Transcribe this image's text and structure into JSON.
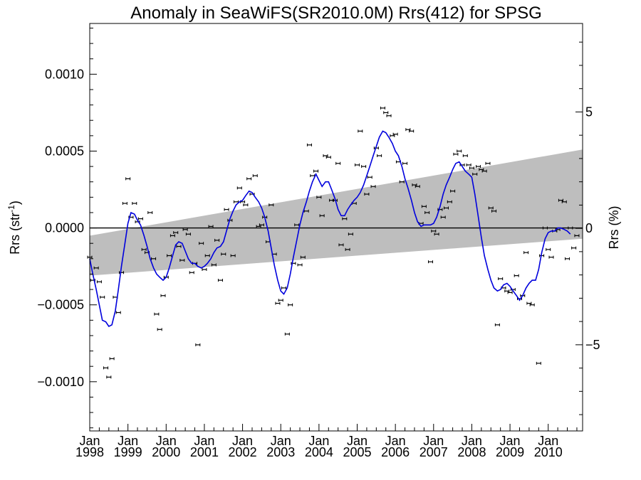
{
  "chart_data": {
    "type": "scatter",
    "title": "Anomaly in SeaWiFS(SR2010.0M) Rrs(412) for SPSG",
    "ylabel_left": "Rrs (str",
    "ylabel_left_sup": "-1",
    "ylabel_left_close": ")",
    "ylabel_right": "Rrs (%)",
    "xlim": [
      1998.0,
      2010.9
    ],
    "ylim": [
      -0.00132,
      0.00133
    ],
    "ylim_right": [
      -8.7,
      8.8
    ],
    "grid": false,
    "y_ticks": [
      {
        "value": 0.001,
        "label": "0.0010"
      },
      {
        "value": 0.0005,
        "label": "0.0005"
      },
      {
        "value": 0.0,
        "label": "0.0000"
      },
      {
        "value": -0.0005,
        "label": "−0.0005"
      },
      {
        "value": -0.001,
        "label": "−0.0010"
      }
    ],
    "y_right_ticks": [
      {
        "value": 5,
        "label": "5"
      },
      {
        "value": 0,
        "label": "0"
      },
      {
        "value": -5,
        "label": "−5"
      }
    ],
    "x_ticks": [
      {
        "value": 1998.0,
        "month": "Jan",
        "year": "1998"
      },
      {
        "value": 1999.0,
        "month": "Jan",
        "year": "1999"
      },
      {
        "value": 2000.0,
        "month": "Jan",
        "year": "2000"
      },
      {
        "value": 2001.0,
        "month": "Jan",
        "year": "2001"
      },
      {
        "value": 2002.0,
        "month": "Jan",
        "year": "2002"
      },
      {
        "value": 2003.0,
        "month": "Jan",
        "year": "2003"
      },
      {
        "value": 2004.0,
        "month": "Jan",
        "year": "2004"
      },
      {
        "value": 2005.0,
        "month": "Jan",
        "year": "2005"
      },
      {
        "value": 2006.0,
        "month": "Jan",
        "year": "2006"
      },
      {
        "value": 2007.0,
        "month": "Jan",
        "year": "2007"
      },
      {
        "value": 2008.0,
        "month": "Jan",
        "year": "2008"
      },
      {
        "value": 2009.0,
        "month": "Jan",
        "year": "2009"
      },
      {
        "value": 2010.0,
        "month": "Jan",
        "year": "2010"
      }
    ],
    "trend_band": {
      "x": [
        1998.0,
        2010.9
      ],
      "upper": [
        -5e-05,
        0.00051
      ],
      "lower": [
        -0.00031,
        -7e-05
      ]
    },
    "monthly_anomaly": [
      [
        1998.0,
        -0.00019
      ],
      [
        1998.08,
        -0.00034
      ],
      [
        1998.17,
        -0.00026
      ],
      [
        1998.25,
        -0.00035
      ],
      [
        1998.33,
        -0.00045
      ],
      [
        1998.42,
        -0.00091
      ],
      [
        1998.5,
        -0.00097
      ],
      [
        1998.58,
        -0.00085
      ],
      [
        1998.67,
        -0.00045
      ],
      [
        1998.75,
        -0.00055
      ],
      [
        1998.83,
        -0.00029
      ],
      [
        1998.92,
        0.00016
      ],
      [
        1999.0,
        0.00032
      ],
      [
        1999.08,
        7e-05
      ],
      [
        1999.17,
        0.00016
      ],
      [
        1999.25,
        4e-05
      ],
      [
        1999.33,
        6e-05
      ],
      [
        1999.42,
        -0.00014
      ],
      [
        1999.5,
        -0.00016
      ],
      [
        1999.58,
        0.0001
      ],
      [
        1999.67,
        -0.0002
      ],
      [
        1999.75,
        -0.00056
      ],
      [
        1999.83,
        -0.00066
      ],
      [
        1999.92,
        -0.00044
      ],
      [
        2000.0,
        -0.00032
      ],
      [
        2000.08,
        -0.00018
      ],
      [
        2000.17,
        -5e-05
      ],
      [
        2000.25,
        -3e-05
      ],
      [
        2000.33,
        -0.00012
      ],
      [
        2000.42,
        -0.00021
      ],
      [
        2000.5,
        -1e-05
      ],
      [
        2000.58,
        -4e-05
      ],
      [
        2000.67,
        -0.00029
      ],
      [
        2000.75,
        -0.00023
      ],
      [
        2000.83,
        -0.00076
      ],
      [
        2000.92,
        -0.0001
      ],
      [
        2001.0,
        -0.00027
      ],
      [
        2001.08,
        -0.00018
      ],
      [
        2001.17,
        1e-05
      ],
      [
        2001.25,
        -0.00024
      ],
      [
        2001.33,
        -8e-05
      ],
      [
        2001.42,
        -0.00034
      ],
      [
        2001.5,
        -0.00017
      ],
      [
        2001.58,
        0.00012
      ],
      [
        2001.67,
        5e-05
      ],
      [
        2001.75,
        -0.00018
      ],
      [
        2001.83,
        0.00017
      ],
      [
        2001.92,
        0.00026
      ],
      [
        2002.0,
        0.00017
      ],
      [
        2002.08,
        0.00015
      ],
      [
        2002.17,
        0.00032
      ],
      [
        2002.25,
        0.00022
      ],
      [
        2002.33,
        0.00034
      ],
      [
        2002.42,
        1e-05
      ],
      [
        2002.5,
        2e-05
      ],
      [
        2002.58,
        7e-05
      ],
      [
        2002.67,
        -9e-05
      ],
      [
        2002.75,
        0.00015
      ],
      [
        2002.83,
        -0.00017
      ],
      [
        2002.92,
        -0.00049
      ],
      [
        2003.0,
        -0.00047
      ],
      [
        2003.08,
        -0.00039
      ],
      [
        2003.17,
        -0.00069
      ],
      [
        2003.25,
        -0.0005
      ],
      [
        2003.33,
        -0.00023
      ],
      [
        2003.42,
        2e-05
      ],
      [
        2003.5,
        -0.00024
      ],
      [
        2003.58,
        -0.00019
      ],
      [
        2003.67,
        0.00011
      ],
      [
        2003.75,
        0.00054
      ],
      [
        2003.83,
        0.00034
      ],
      [
        2003.92,
        0.00037
      ],
      [
        2004.0,
        0.0002
      ],
      [
        2004.08,
        8e-05
      ],
      [
        2004.17,
        0.00047
      ],
      [
        2004.25,
        0.00046
      ],
      [
        2004.33,
        0.00018
      ],
      [
        2004.42,
        0.00018
      ],
      [
        2004.5,
        0.00042
      ],
      [
        2004.58,
        -0.00011
      ],
      [
        2004.67,
        6e-05
      ],
      [
        2004.75,
        -0.00014
      ],
      [
        2004.83,
        -4e-05
      ],
      [
        2004.92,
        0.00016
      ],
      [
        2005.0,
        0.00041
      ],
      [
        2005.08,
        0.00063
      ],
      [
        2005.17,
        0.0004
      ],
      [
        2005.25,
        0.00022
      ],
      [
        2005.33,
        0.00033
      ],
      [
        2005.42,
        0.00027
      ],
      [
        2005.5,
        0.00052
      ],
      [
        2005.58,
        0.00047
      ],
      [
        2005.67,
        0.00078
      ],
      [
        2005.75,
        0.00075
      ],
      [
        2005.83,
        0.00073
      ],
      [
        2005.92,
        0.0006
      ],
      [
        2006.0,
        0.00061
      ],
      [
        2006.08,
        0.00043
      ],
      [
        2006.17,
        0.0003
      ],
      [
        2006.25,
        0.00042
      ],
      [
        2006.33,
        0.00064
      ],
      [
        2006.42,
        0.00063
      ],
      [
        2006.5,
        0.00028
      ],
      [
        2006.58,
        0.00027
      ],
      [
        2006.67,
        3e-05
      ],
      [
        2006.75,
        0.00014
      ],
      [
        2006.83,
        0.0001
      ],
      [
        2006.92,
        -0.00022
      ],
      [
        2007.0,
        -2e-05
      ],
      [
        2007.08,
        -4e-05
      ],
      [
        2007.17,
        0.00012
      ],
      [
        2007.25,
        7e-05
      ],
      [
        2007.33,
        0.00013
      ],
      [
        2007.42,
        0.00017
      ],
      [
        2007.5,
        0.00024
      ],
      [
        2007.58,
        0.00048
      ],
      [
        2007.67,
        0.0005
      ],
      [
        2007.75,
        0.00041
      ],
      [
        2007.83,
        0.00047
      ],
      [
        2007.92,
        0.00041
      ],
      [
        2008.0,
        0.00039
      ],
      [
        2008.08,
        0.00035
      ],
      [
        2008.17,
        0.0004
      ],
      [
        2008.25,
        0.00038
      ],
      [
        2008.33,
        0.00037
      ],
      [
        2008.42,
        0.00042
      ],
      [
        2008.5,
        0.00013
      ],
      [
        2008.58,
        0.00011
      ],
      [
        2008.67,
        -0.00063
      ],
      [
        2008.75,
        -0.00033
      ],
      [
        2008.83,
        -0.00039
      ],
      [
        2008.92,
        -0.00041
      ],
      [
        2009.0,
        -0.00042
      ],
      [
        2009.08,
        -0.0004
      ],
      [
        2009.17,
        -0.00031
      ],
      [
        2009.25,
        -0.00046
      ],
      [
        2009.33,
        -0.00044
      ],
      [
        2009.42,
        -0.00016
      ],
      [
        2009.5,
        -0.00049
      ],
      [
        2009.58,
        -0.0005
      ],
      [
        2009.75,
        -0.00088
      ],
      [
        2009.83,
        -0.00018
      ],
      [
        2009.92,
        0.0
      ],
      [
        2010.0,
        -0.00014
      ],
      [
        2010.08,
        -0.00019
      ],
      [
        2010.17,
        -2e-05
      ],
      [
        2010.25,
        -1e-05
      ],
      [
        2010.33,
        0.00018
      ],
      [
        2010.42,
        0.00017
      ],
      [
        2010.5,
        -0.0002
      ],
      [
        2010.58,
        0.0
      ],
      [
        2010.67,
        -0.00013
      ],
      [
        2010.75,
        -5e-05
      ]
    ],
    "smoothed_line": [
      [
        1998.0,
        -0.0002
      ],
      [
        1998.08,
        -0.0003
      ],
      [
        1998.17,
        -0.0004
      ],
      [
        1998.25,
        -0.0005
      ],
      [
        1998.33,
        -0.0006
      ],
      [
        1998.42,
        -0.00061
      ],
      [
        1998.5,
        -0.00064
      ],
      [
        1998.58,
        -0.00063
      ],
      [
        1998.67,
        -0.00054
      ],
      [
        1998.75,
        -0.0004
      ],
      [
        1998.83,
        -0.00025
      ],
      [
        1998.92,
        -0.0001
      ],
      [
        1999.0,
        3e-05
      ],
      [
        1999.08,
        0.0001
      ],
      [
        1999.17,
        9e-05
      ],
      [
        1999.25,
        5e-05
      ],
      [
        1999.33,
        2e-05
      ],
      [
        1999.42,
        -5e-05
      ],
      [
        1999.5,
        -0.00012
      ],
      [
        1999.58,
        -0.0002
      ],
      [
        1999.67,
        -0.00026
      ],
      [
        1999.75,
        -0.0003
      ],
      [
        1999.83,
        -0.00032
      ],
      [
        1999.92,
        -0.00034
      ],
      [
        2000.0,
        -0.00032
      ],
      [
        2000.08,
        -0.00026
      ],
      [
        2000.17,
        -0.00018
      ],
      [
        2000.25,
        -0.00011
      ],
      [
        2000.33,
        -9e-05
      ],
      [
        2000.42,
        -0.0001
      ],
      [
        2000.5,
        -0.00015
      ],
      [
        2000.58,
        -0.0002
      ],
      [
        2000.67,
        -0.00023
      ],
      [
        2000.75,
        -0.00023
      ],
      [
        2000.83,
        -0.00025
      ],
      [
        2000.92,
        -0.00026
      ],
      [
        2001.0,
        -0.00025
      ],
      [
        2001.08,
        -0.00023
      ],
      [
        2001.17,
        -0.0002
      ],
      [
        2001.25,
        -0.00016
      ],
      [
        2001.33,
        -0.00013
      ],
      [
        2001.42,
        -0.00012
      ],
      [
        2001.5,
        -9e-05
      ],
      [
        2001.58,
        -2e-05
      ],
      [
        2001.67,
        6e-05
      ],
      [
        2001.75,
        0.00011
      ],
      [
        2001.83,
        0.00015
      ],
      [
        2001.92,
        0.00017
      ],
      [
        2002.0,
        0.00018
      ],
      [
        2002.08,
        0.00021
      ],
      [
        2002.17,
        0.00024
      ],
      [
        2002.25,
        0.00023
      ],
      [
        2002.33,
        0.0002
      ],
      [
        2002.42,
        0.00017
      ],
      [
        2002.5,
        0.00013
      ],
      [
        2002.58,
        7e-05
      ],
      [
        2002.67,
        -2e-05
      ],
      [
        2002.75,
        -0.00013
      ],
      [
        2002.83,
        -0.00024
      ],
      [
        2002.92,
        -0.00034
      ],
      [
        2003.0,
        -0.00041
      ],
      [
        2003.08,
        -0.00043
      ],
      [
        2003.17,
        -0.00039
      ],
      [
        2003.25,
        -0.0003
      ],
      [
        2003.33,
        -0.00019
      ],
      [
        2003.42,
        -8e-05
      ],
      [
        2003.5,
        2e-05
      ],
      [
        2003.58,
        0.0001
      ],
      [
        2003.67,
        0.00017
      ],
      [
        2003.75,
        0.00024
      ],
      [
        2003.83,
        0.0003
      ],
      [
        2003.92,
        0.00035
      ],
      [
        2004.0,
        0.00031
      ],
      [
        2004.08,
        0.00027
      ],
      [
        2004.17,
        0.0003
      ],
      [
        2004.25,
        0.0003
      ],
      [
        2004.33,
        0.00025
      ],
      [
        2004.42,
        0.00019
      ],
      [
        2004.5,
        0.00012
      ],
      [
        2004.58,
        8e-05
      ],
      [
        2004.67,
        8e-05
      ],
      [
        2004.75,
        0.00012
      ],
      [
        2004.83,
        0.00015
      ],
      [
        2004.92,
        0.00018
      ],
      [
        2005.0,
        0.0002
      ],
      [
        2005.08,
        0.00023
      ],
      [
        2005.17,
        0.00028
      ],
      [
        2005.25,
        0.00034
      ],
      [
        2005.33,
        0.0004
      ],
      [
        2005.42,
        0.00047
      ],
      [
        2005.5,
        0.00053
      ],
      [
        2005.58,
        0.00059
      ],
      [
        2005.67,
        0.00063
      ],
      [
        2005.75,
        0.00062
      ],
      [
        2005.83,
        0.00059
      ],
      [
        2005.92,
        0.00055
      ],
      [
        2006.0,
        0.0005
      ],
      [
        2006.08,
        0.00047
      ],
      [
        2006.17,
        0.0004
      ],
      [
        2006.25,
        0.00032
      ],
      [
        2006.33,
        0.00026
      ],
      [
        2006.42,
        0.00018
      ],
      [
        2006.5,
        0.0001
      ],
      [
        2006.58,
        4e-05
      ],
      [
        2006.67,
        1e-05
      ],
      [
        2006.75,
        2e-05
      ],
      [
        2006.83,
        2e-05
      ],
      [
        2006.92,
        2e-05
      ],
      [
        2007.0,
        3e-05
      ],
      [
        2007.08,
        7e-05
      ],
      [
        2007.17,
        0.00014
      ],
      [
        2007.25,
        0.00022
      ],
      [
        2007.33,
        0.00028
      ],
      [
        2007.42,
        0.00033
      ],
      [
        2007.5,
        0.00038
      ],
      [
        2007.58,
        0.00042
      ],
      [
        2007.67,
        0.00043
      ],
      [
        2007.75,
        0.0004
      ],
      [
        2007.83,
        0.00037
      ],
      [
        2007.92,
        0.00035
      ],
      [
        2008.0,
        0.00033
      ],
      [
        2008.08,
        0.00022
      ],
      [
        2008.17,
        7e-05
      ],
      [
        2008.25,
        -6e-05
      ],
      [
        2008.33,
        -0.00018
      ],
      [
        2008.42,
        -0.00027
      ],
      [
        2008.5,
        -0.00034
      ],
      [
        2008.58,
        -0.00039
      ],
      [
        2008.67,
        -0.00041
      ],
      [
        2008.75,
        -0.0004
      ],
      [
        2008.83,
        -0.00037
      ],
      [
        2008.92,
        -0.00036
      ],
      [
        2009.0,
        -0.00038
      ],
      [
        2009.08,
        -0.00041
      ],
      [
        2009.17,
        -0.00044
      ],
      [
        2009.25,
        -0.00047
      ],
      [
        2009.33,
        -0.00044
      ],
      [
        2009.42,
        -0.00039
      ],
      [
        2009.5,
        -0.00036
      ],
      [
        2009.58,
        -0.00034
      ],
      [
        2009.67,
        -0.00034
      ],
      [
        2009.75,
        -0.00027
      ],
      [
        2009.83,
        -0.00016
      ],
      [
        2009.92,
        -7e-05
      ],
      [
        2010.0,
        -3e-05
      ],
      [
        2010.08,
        -2e-05
      ],
      [
        2010.17,
        -2e-05
      ],
      [
        2010.25,
        0.0
      ],
      [
        2010.33,
        0.0
      ],
      [
        2010.42,
        -1e-05
      ],
      [
        2010.5,
        -2e-05
      ],
      [
        2010.58,
        -4e-05
      ]
    ],
    "colors": {
      "band": "#bebebe",
      "smoothed_line": "#0000dd",
      "points": "#000000",
      "zero_line": "#000000"
    }
  }
}
